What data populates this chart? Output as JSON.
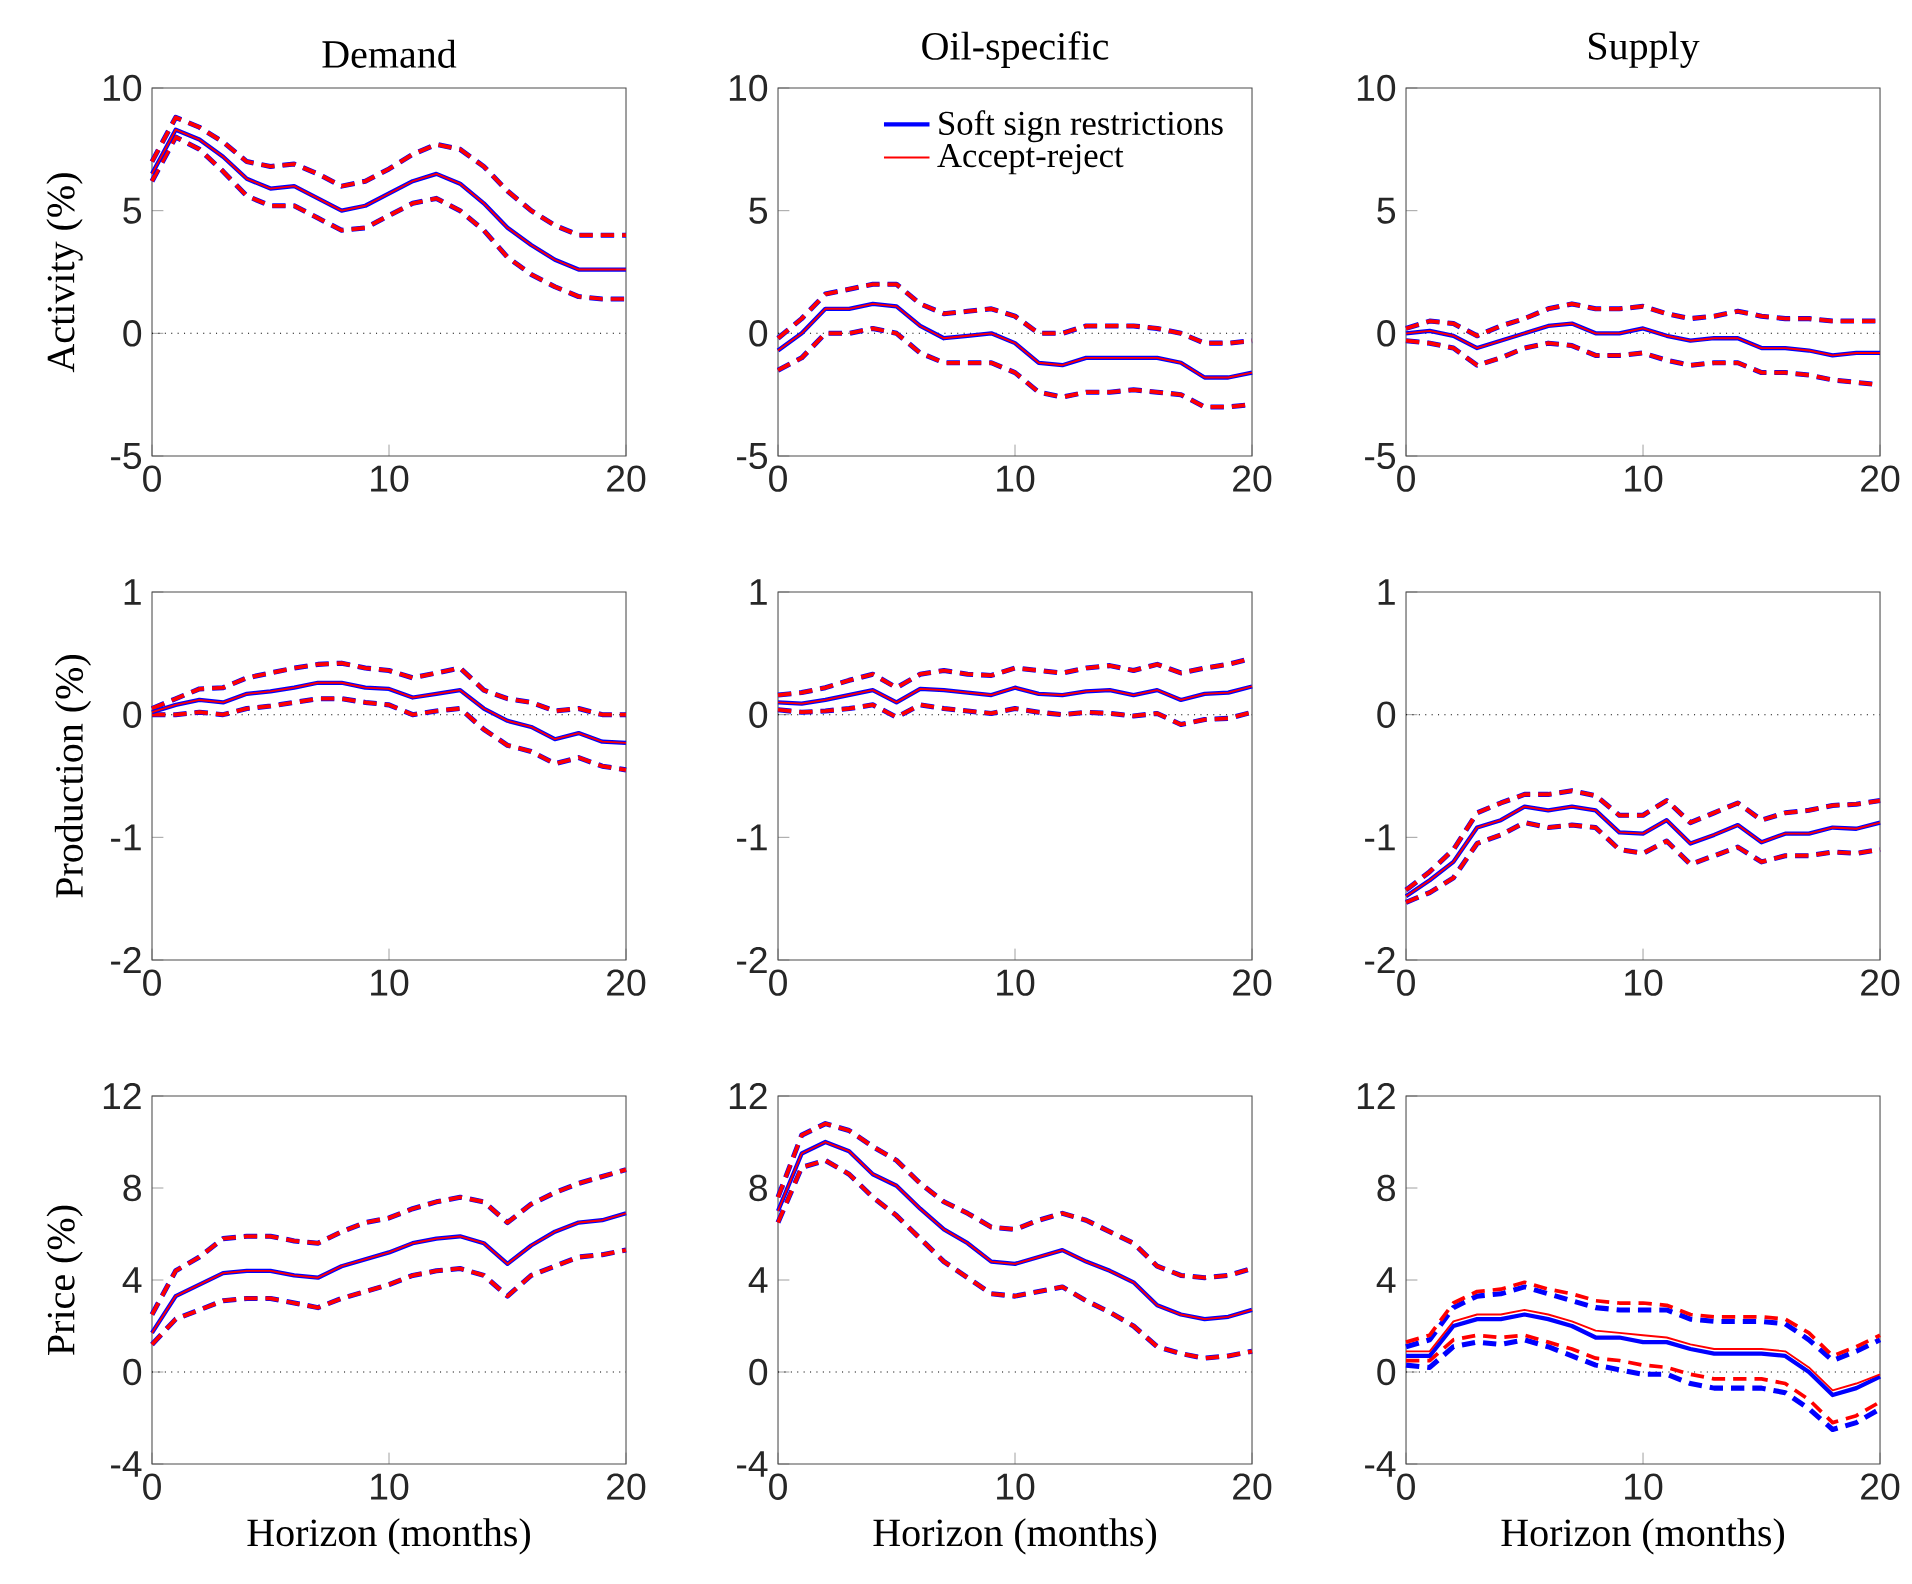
{
  "chart_data": [
    {
      "type": "line",
      "title": "Demand",
      "ylabel": "Activity (%)",
      "x": [
        0,
        1,
        2,
        3,
        4,
        5,
        6,
        7,
        8,
        9,
        10,
        11,
        12,
        13,
        14,
        15,
        16,
        17,
        18,
        19,
        20
      ],
      "xlim": [
        0,
        20
      ],
      "ylim": [
        -5,
        10
      ],
      "xticks": [
        0,
        10,
        20
      ],
      "yticks": [
        -5,
        0,
        5,
        10
      ],
      "ref_lines": [
        {
          "axis": "y",
          "value": 0,
          "line_style": "dotted"
        }
      ],
      "series": [
        {
          "color": "#0000ff",
          "line_style": "dashed",
          "values": [
            6.2,
            8.0,
            7.5,
            6.6,
            5.6,
            5.2,
            5.2,
            4.7,
            4.2,
            4.3,
            4.8,
            5.3,
            5.5,
            5.0,
            4.2,
            3.1,
            2.4,
            1.9,
            1.5,
            1.4,
            1.4
          ]
        },
        {
          "color": "#0000ff",
          "line_style": "dashed",
          "values": [
            7.0,
            8.8,
            8.4,
            7.8,
            7.0,
            6.8,
            6.9,
            6.5,
            6.0,
            6.2,
            6.7,
            7.3,
            7.7,
            7.5,
            6.8,
            5.8,
            5.0,
            4.4,
            4.0,
            4.0,
            4.0
          ]
        },
        {
          "color": "#ff0000",
          "line_style": "dashed",
          "values": [
            6.2,
            8.0,
            7.5,
            6.6,
            5.6,
            5.2,
            5.2,
            4.7,
            4.2,
            4.3,
            4.8,
            5.3,
            5.5,
            5.0,
            4.2,
            3.1,
            2.4,
            1.9,
            1.5,
            1.4,
            1.4
          ]
        },
        {
          "color": "#ff0000",
          "line_style": "dashed",
          "values": [
            7.0,
            8.8,
            8.4,
            7.8,
            7.0,
            6.8,
            6.9,
            6.5,
            6.0,
            6.2,
            6.7,
            7.3,
            7.7,
            7.5,
            6.8,
            5.8,
            5.0,
            4.4,
            4.0,
            4.0,
            4.0
          ]
        },
        {
          "color": "#0000ff",
          "line_style": "solid",
          "values": [
            6.5,
            8.3,
            7.9,
            7.2,
            6.3,
            5.9,
            6.0,
            5.5,
            5.0,
            5.2,
            5.7,
            6.2,
            6.5,
            6.1,
            5.3,
            4.3,
            3.6,
            3.0,
            2.6,
            2.6,
            2.6
          ]
        },
        {
          "color": "#ff0000",
          "line_style": "solid",
          "values": [
            6.5,
            8.3,
            7.9,
            7.2,
            6.3,
            5.9,
            6.0,
            5.5,
            5.0,
            5.2,
            5.7,
            6.2,
            6.5,
            6.1,
            5.3,
            4.3,
            3.6,
            3.0,
            2.6,
            2.6,
            2.6
          ]
        }
      ]
    },
    {
      "type": "line",
      "title": "Oil-specific",
      "legend": "top right",
      "x": [
        0,
        1,
        2,
        3,
        4,
        5,
        6,
        7,
        8,
        9,
        10,
        11,
        12,
        13,
        14,
        15,
        16,
        17,
        18,
        19,
        20
      ],
      "xlim": [
        0,
        20
      ],
      "ylim": [
        -5,
        10
      ],
      "xticks": [
        0,
        10,
        20
      ],
      "yticks": [
        -5,
        0,
        5,
        10
      ],
      "ref_lines": [
        {
          "axis": "y",
          "value": 0,
          "line_style": "dotted"
        }
      ],
      "series": [
        {
          "color": "#0000ff",
          "line_style": "dashed",
          "values": [
            -1.5,
            -1.0,
            0,
            0,
            0.2,
            0,
            -0.8,
            -1.2,
            -1.2,
            -1.2,
            -1.6,
            -2.4,
            -2.6,
            -2.4,
            -2.4,
            -2.3,
            -2.4,
            -2.5,
            -3.0,
            -3.0,
            -2.9
          ]
        },
        {
          "color": "#0000ff",
          "line_style": "dashed",
          "values": [
            -0.2,
            0.6,
            1.6,
            1.8,
            2.0,
            2.0,
            1.2,
            0.8,
            0.9,
            1.0,
            0.7,
            0,
            0,
            0.3,
            0.3,
            0.3,
            0.2,
            0,
            -0.4,
            -0.4,
            -0.3
          ]
        },
        {
          "color": "#ff0000",
          "line_style": "dashed",
          "values": [
            -1.5,
            -1.0,
            0,
            0,
            0.2,
            0,
            -0.8,
            -1.2,
            -1.2,
            -1.2,
            -1.6,
            -2.4,
            -2.6,
            -2.4,
            -2.4,
            -2.3,
            -2.4,
            -2.5,
            -3.0,
            -3.0,
            -2.9
          ]
        },
        {
          "color": "#ff0000",
          "line_style": "dashed",
          "values": [
            -0.2,
            0.6,
            1.6,
            1.8,
            2.0,
            2.0,
            1.2,
            0.8,
            0.9,
            1.0,
            0.7,
            0,
            0,
            0.3,
            0.3,
            0.3,
            0.2,
            0,
            -0.4,
            -0.4,
            -0.3
          ]
        },
        {
          "name": "Soft sign restrictions",
          "color": "#0000ff",
          "line_style": "solid",
          "values": [
            -0.7,
            0,
            1.0,
            1.0,
            1.2,
            1.1,
            0.3,
            -0.2,
            -0.1,
            0,
            -0.4,
            -1.2,
            -1.3,
            -1.0,
            -1.0,
            -1.0,
            -1.0,
            -1.2,
            -1.8,
            -1.8,
            -1.6
          ]
        },
        {
          "name": "Accept-reject",
          "color": "#ff0000",
          "line_style": "solid",
          "values": [
            -0.7,
            0,
            1.0,
            1.0,
            1.2,
            1.1,
            0.3,
            -0.2,
            -0.1,
            0,
            -0.4,
            -1.2,
            -1.3,
            -1.0,
            -1.0,
            -1.0,
            -1.0,
            -1.2,
            -1.8,
            -1.8,
            -1.6
          ]
        }
      ]
    },
    {
      "type": "line",
      "title": "Supply",
      "x": [
        0,
        1,
        2,
        3,
        4,
        5,
        6,
        7,
        8,
        9,
        10,
        11,
        12,
        13,
        14,
        15,
        16,
        17,
        18,
        19,
        20
      ],
      "xlim": [
        0,
        20
      ],
      "ylim": [
        -5,
        10
      ],
      "xticks": [
        0,
        10,
        20
      ],
      "yticks": [
        -5,
        0,
        5,
        10
      ],
      "ref_lines": [
        {
          "axis": "y",
          "value": 0,
          "line_style": "dotted"
        }
      ],
      "series": [
        {
          "color": "#0000ff",
          "line_style": "dashed",
          "values": [
            -0.3,
            -0.4,
            -0.6,
            -1.3,
            -1.0,
            -0.6,
            -0.4,
            -0.5,
            -0.9,
            -0.9,
            -0.8,
            -1.1,
            -1.3,
            -1.2,
            -1.2,
            -1.6,
            -1.6,
            -1.7,
            -1.9,
            -2.0,
            -2.1
          ]
        },
        {
          "color": "#0000ff",
          "line_style": "dashed",
          "values": [
            0.2,
            0.5,
            0.4,
            -0.1,
            0.3,
            0.6,
            1.0,
            1.2,
            1.0,
            1.0,
            1.1,
            0.8,
            0.6,
            0.7,
            0.9,
            0.7,
            0.6,
            0.6,
            0.5,
            0.5,
            0.5
          ]
        },
        {
          "color": "#ff0000",
          "line_style": "dashed",
          "values": [
            -0.3,
            -0.4,
            -0.6,
            -1.3,
            -1.0,
            -0.6,
            -0.4,
            -0.5,
            -0.9,
            -0.9,
            -0.8,
            -1.1,
            -1.3,
            -1.2,
            -1.2,
            -1.6,
            -1.6,
            -1.7,
            -1.9,
            -2.0,
            -2.1
          ]
        },
        {
          "color": "#ff0000",
          "line_style": "dashed",
          "values": [
            0.2,
            0.5,
            0.4,
            -0.1,
            0.3,
            0.6,
            1.0,
            1.2,
            1.0,
            1.0,
            1.1,
            0.8,
            0.6,
            0.7,
            0.9,
            0.7,
            0.6,
            0.6,
            0.5,
            0.5,
            0.5
          ]
        },
        {
          "color": "#0000ff",
          "line_style": "solid",
          "values": [
            0,
            0.1,
            -0.1,
            -0.6,
            -0.3,
            0,
            0.3,
            0.4,
            0,
            0,
            0.2,
            -0.1,
            -0.3,
            -0.2,
            -0.2,
            -0.6,
            -0.6,
            -0.7,
            -0.9,
            -0.8,
            -0.8
          ]
        },
        {
          "color": "#ff0000",
          "line_style": "solid",
          "values": [
            0,
            0.1,
            -0.1,
            -0.6,
            -0.3,
            0,
            0.3,
            0.4,
            0,
            0,
            0.2,
            -0.1,
            -0.3,
            -0.2,
            -0.2,
            -0.6,
            -0.6,
            -0.7,
            -0.9,
            -0.8,
            -0.8
          ]
        }
      ]
    },
    {
      "type": "line",
      "ylabel": "Production (%)",
      "x": [
        0,
        1,
        2,
        3,
        4,
        5,
        6,
        7,
        8,
        9,
        10,
        11,
        12,
        13,
        14,
        15,
        16,
        17,
        18,
        19,
        20
      ],
      "xlim": [
        0,
        20
      ],
      "ylim": [
        -2,
        1
      ],
      "xticks": [
        0,
        10,
        20
      ],
      "yticks": [
        -2,
        -1,
        0,
        1
      ],
      "ref_lines": [
        {
          "axis": "y",
          "value": 0,
          "line_style": "dotted"
        }
      ],
      "series": [
        {
          "color": "#0000ff",
          "line_style": "dashed",
          "values": [
            0,
            0,
            0.02,
            0,
            0.05,
            0.07,
            0.1,
            0.13,
            0.13,
            0.1,
            0.08,
            0,
            0.03,
            0.05,
            -0.12,
            -0.25,
            -0.3,
            -0.4,
            -0.35,
            -0.42,
            -0.45
          ]
        },
        {
          "color": "#0000ff",
          "line_style": "dashed",
          "values": [
            0.05,
            0.13,
            0.21,
            0.22,
            0.3,
            0.34,
            0.38,
            0.41,
            0.42,
            0.38,
            0.36,
            0.3,
            0.34,
            0.38,
            0.2,
            0.13,
            0.1,
            0.03,
            0.05,
            0,
            0
          ]
        },
        {
          "color": "#ff0000",
          "line_style": "dashed",
          "values": [
            0,
            0,
            0.02,
            0,
            0.05,
            0.07,
            0.1,
            0.13,
            0.13,
            0.1,
            0.08,
            0,
            0.03,
            0.05,
            -0.12,
            -0.25,
            -0.3,
            -0.4,
            -0.35,
            -0.42,
            -0.45
          ]
        },
        {
          "color": "#ff0000",
          "line_style": "dashed",
          "values": [
            0.05,
            0.13,
            0.21,
            0.22,
            0.3,
            0.34,
            0.38,
            0.41,
            0.42,
            0.38,
            0.36,
            0.3,
            0.34,
            0.38,
            0.2,
            0.13,
            0.1,
            0.03,
            0.05,
            0,
            0
          ]
        },
        {
          "color": "#0000ff",
          "line_style": "solid",
          "values": [
            0.02,
            0.08,
            0.12,
            0.1,
            0.17,
            0.19,
            0.22,
            0.26,
            0.26,
            0.22,
            0.21,
            0.14,
            0.17,
            0.2,
            0.05,
            -0.05,
            -0.1,
            -0.2,
            -0.15,
            -0.22,
            -0.23
          ]
        },
        {
          "color": "#ff0000",
          "line_style": "solid",
          "values": [
            0.02,
            0.08,
            0.12,
            0.1,
            0.17,
            0.19,
            0.22,
            0.26,
            0.26,
            0.22,
            0.21,
            0.14,
            0.17,
            0.2,
            0.05,
            -0.05,
            -0.1,
            -0.2,
            -0.15,
            -0.22,
            -0.23
          ]
        }
      ]
    },
    {
      "type": "line",
      "x": [
        0,
        1,
        2,
        3,
        4,
        5,
        6,
        7,
        8,
        9,
        10,
        11,
        12,
        13,
        14,
        15,
        16,
        17,
        18,
        19,
        20
      ],
      "xlim": [
        0,
        20
      ],
      "ylim": [
        -2,
        1
      ],
      "xticks": [
        0,
        10,
        20
      ],
      "yticks": [
        -2,
        -1,
        0,
        1
      ],
      "ref_lines": [
        {
          "axis": "y",
          "value": 0,
          "line_style": "dotted"
        }
      ],
      "series": [
        {
          "color": "#0000ff",
          "line_style": "dashed",
          "values": [
            0.04,
            0.02,
            0.03,
            0.05,
            0.08,
            -0.02,
            0.08,
            0.05,
            0.03,
            0.01,
            0.05,
            0.02,
            0,
            0.02,
            0.01,
            -0.01,
            0.01,
            -0.08,
            -0.04,
            -0.03,
            0.02
          ]
        },
        {
          "color": "#0000ff",
          "line_style": "dashed",
          "values": [
            0.16,
            0.18,
            0.22,
            0.28,
            0.33,
            0.22,
            0.33,
            0.36,
            0.33,
            0.32,
            0.38,
            0.36,
            0.34,
            0.38,
            0.4,
            0.36,
            0.41,
            0.34,
            0.38,
            0.41,
            0.46
          ]
        },
        {
          "color": "#ff0000",
          "line_style": "dashed",
          "values": [
            0.04,
            0.02,
            0.03,
            0.05,
            0.08,
            -0.02,
            0.08,
            0.05,
            0.03,
            0.01,
            0.05,
            0.02,
            0,
            0.02,
            0.01,
            -0.01,
            0.01,
            -0.08,
            -0.04,
            -0.03,
            0.02
          ]
        },
        {
          "color": "#ff0000",
          "line_style": "dashed",
          "values": [
            0.16,
            0.18,
            0.22,
            0.28,
            0.33,
            0.22,
            0.33,
            0.36,
            0.33,
            0.32,
            0.38,
            0.36,
            0.34,
            0.38,
            0.4,
            0.36,
            0.41,
            0.34,
            0.38,
            0.41,
            0.46
          ]
        },
        {
          "color": "#0000ff",
          "line_style": "solid",
          "values": [
            0.1,
            0.09,
            0.12,
            0.16,
            0.2,
            0.1,
            0.21,
            0.2,
            0.18,
            0.16,
            0.22,
            0.17,
            0.16,
            0.19,
            0.2,
            0.16,
            0.2,
            0.12,
            0.17,
            0.18,
            0.23
          ]
        },
        {
          "color": "#ff0000",
          "line_style": "solid",
          "values": [
            0.1,
            0.09,
            0.12,
            0.16,
            0.2,
            0.1,
            0.21,
            0.2,
            0.18,
            0.16,
            0.22,
            0.17,
            0.16,
            0.19,
            0.2,
            0.16,
            0.2,
            0.12,
            0.17,
            0.18,
            0.23
          ]
        }
      ]
    },
    {
      "type": "line",
      "x": [
        0,
        1,
        2,
        3,
        4,
        5,
        6,
        7,
        8,
        9,
        10,
        11,
        12,
        13,
        14,
        15,
        16,
        17,
        18,
        19,
        20
      ],
      "xlim": [
        0,
        20
      ],
      "ylim": [
        -2,
        1
      ],
      "xticks": [
        0,
        10,
        20
      ],
      "yticks": [
        -2,
        -1,
        0,
        1
      ],
      "ref_lines": [
        {
          "axis": "y",
          "value": 0,
          "line_style": "dotted"
        }
      ],
      "series": [
        {
          "color": "#0000ff",
          "line_style": "dashed",
          "values": [
            -1.53,
            -1.45,
            -1.33,
            -1.05,
            -0.98,
            -0.88,
            -0.92,
            -0.9,
            -0.92,
            -1.1,
            -1.13,
            -1.03,
            -1.22,
            -1.15,
            -1.08,
            -1.2,
            -1.15,
            -1.15,
            -1.12,
            -1.13,
            -1.1
          ]
        },
        {
          "color": "#0000ff",
          "line_style": "dashed",
          "values": [
            -1.43,
            -1.28,
            -1.1,
            -0.8,
            -0.72,
            -0.65,
            -0.65,
            -0.62,
            -0.66,
            -0.82,
            -0.82,
            -0.7,
            -0.88,
            -0.8,
            -0.72,
            -0.86,
            -0.8,
            -0.78,
            -0.74,
            -0.73,
            -0.7
          ]
        },
        {
          "color": "#ff0000",
          "line_style": "dashed",
          "values": [
            -1.53,
            -1.45,
            -1.33,
            -1.05,
            -0.98,
            -0.88,
            -0.92,
            -0.9,
            -0.92,
            -1.1,
            -1.13,
            -1.03,
            -1.22,
            -1.15,
            -1.08,
            -1.2,
            -1.15,
            -1.15,
            -1.12,
            -1.13,
            -1.1
          ]
        },
        {
          "color": "#ff0000",
          "line_style": "dashed",
          "values": [
            -1.43,
            -1.28,
            -1.1,
            -0.8,
            -0.72,
            -0.65,
            -0.65,
            -0.62,
            -0.66,
            -0.82,
            -0.82,
            -0.7,
            -0.88,
            -0.8,
            -0.72,
            -0.86,
            -0.8,
            -0.78,
            -0.74,
            -0.73,
            -0.7
          ]
        },
        {
          "color": "#0000ff",
          "line_style": "solid",
          "values": [
            -1.48,
            -1.35,
            -1.2,
            -0.92,
            -0.86,
            -0.75,
            -0.78,
            -0.75,
            -0.78,
            -0.96,
            -0.97,
            -0.86,
            -1.05,
            -0.98,
            -0.9,
            -1.04,
            -0.97,
            -0.97,
            -0.92,
            -0.93,
            -0.88
          ]
        },
        {
          "color": "#ff0000",
          "line_style": "solid",
          "values": [
            -1.48,
            -1.35,
            -1.2,
            -0.92,
            -0.86,
            -0.75,
            -0.78,
            -0.75,
            -0.78,
            -0.96,
            -0.97,
            -0.86,
            -1.05,
            -0.98,
            -0.9,
            -1.04,
            -0.97,
            -0.97,
            -0.92,
            -0.93,
            -0.88
          ]
        }
      ]
    },
    {
      "type": "line",
      "ylabel": "Price (%)",
      "xlabel": "Horizon (months)",
      "x": [
        0,
        1,
        2,
        3,
        4,
        5,
        6,
        7,
        8,
        9,
        10,
        11,
        12,
        13,
        14,
        15,
        16,
        17,
        18,
        19,
        20
      ],
      "xlim": [
        0,
        20
      ],
      "ylim": [
        -4,
        12
      ],
      "xticks": [
        0,
        10,
        20
      ],
      "yticks": [
        -4,
        0,
        4,
        8,
        12
      ],
      "ref_lines": [
        {
          "axis": "y",
          "value": 0,
          "line_style": "dotted"
        }
      ],
      "series": [
        {
          "color": "#0000ff",
          "line_style": "dashed",
          "values": [
            1.2,
            2.3,
            2.7,
            3.1,
            3.2,
            3.2,
            3.0,
            2.8,
            3.2,
            3.5,
            3.8,
            4.2,
            4.4,
            4.5,
            4.2,
            3.3,
            4.2,
            4.6,
            5.0,
            5.1,
            5.3
          ]
        },
        {
          "color": "#0000ff",
          "line_style": "dashed",
          "values": [
            2.5,
            4.4,
            5.0,
            5.8,
            5.9,
            5.9,
            5.7,
            5.6,
            6.1,
            6.5,
            6.7,
            7.1,
            7.4,
            7.6,
            7.4,
            6.5,
            7.3,
            7.8,
            8.2,
            8.5,
            8.8
          ]
        },
        {
          "color": "#ff0000",
          "line_style": "dashed",
          "values": [
            1.2,
            2.3,
            2.7,
            3.1,
            3.2,
            3.2,
            3.0,
            2.8,
            3.2,
            3.5,
            3.8,
            4.2,
            4.4,
            4.5,
            4.2,
            3.3,
            4.2,
            4.6,
            5.0,
            5.1,
            5.3
          ]
        },
        {
          "color": "#ff0000",
          "line_style": "dashed",
          "values": [
            2.5,
            4.4,
            5.0,
            5.8,
            5.9,
            5.9,
            5.7,
            5.6,
            6.1,
            6.5,
            6.7,
            7.1,
            7.4,
            7.6,
            7.4,
            6.5,
            7.3,
            7.8,
            8.2,
            8.5,
            8.8
          ]
        },
        {
          "color": "#0000ff",
          "line_style": "solid",
          "values": [
            1.7,
            3.3,
            3.8,
            4.3,
            4.4,
            4.4,
            4.2,
            4.1,
            4.6,
            4.9,
            5.2,
            5.6,
            5.8,
            5.9,
            5.6,
            4.7,
            5.5,
            6.1,
            6.5,
            6.6,
            6.9
          ]
        },
        {
          "color": "#ff0000",
          "line_style": "solid",
          "values": [
            1.7,
            3.3,
            3.8,
            4.3,
            4.4,
            4.4,
            4.2,
            4.1,
            4.6,
            4.9,
            5.2,
            5.6,
            5.8,
            5.9,
            5.6,
            4.7,
            5.5,
            6.1,
            6.5,
            6.6,
            6.9
          ]
        }
      ]
    },
    {
      "type": "line",
      "xlabel": "Horizon (months)",
      "x": [
        0,
        1,
        2,
        3,
        4,
        5,
        6,
        7,
        8,
        9,
        10,
        11,
        12,
        13,
        14,
        15,
        16,
        17,
        18,
        19,
        20
      ],
      "xlim": [
        0,
        20
      ],
      "ylim": [
        -4,
        12
      ],
      "xticks": [
        0,
        10,
        20
      ],
      "yticks": [
        -4,
        0,
        4,
        8,
        12
      ],
      "ref_lines": [
        {
          "axis": "y",
          "value": 0,
          "line_style": "dotted"
        }
      ],
      "series": [
        {
          "color": "#0000ff",
          "line_style": "dashed",
          "values": [
            6.5,
            8.9,
            9.2,
            8.6,
            7.6,
            6.8,
            5.8,
            4.8,
            4.1,
            3.4,
            3.3,
            3.5,
            3.7,
            3.1,
            2.6,
            2.0,
            1.1,
            0.8,
            0.6,
            0.7,
            0.9
          ]
        },
        {
          "color": "#0000ff",
          "line_style": "dashed",
          "values": [
            7.6,
            10.3,
            10.8,
            10.5,
            9.8,
            9.2,
            8.2,
            7.4,
            6.9,
            6.3,
            6.2,
            6.6,
            6.9,
            6.6,
            6.1,
            5.6,
            4.6,
            4.2,
            4.1,
            4.2,
            4.5
          ]
        },
        {
          "color": "#ff0000",
          "line_style": "dashed",
          "values": [
            6.5,
            8.9,
            9.2,
            8.6,
            7.6,
            6.8,
            5.8,
            4.8,
            4.1,
            3.4,
            3.3,
            3.5,
            3.7,
            3.1,
            2.6,
            2.0,
            1.1,
            0.8,
            0.6,
            0.7,
            0.9
          ]
        },
        {
          "color": "#ff0000",
          "line_style": "dashed",
          "values": [
            7.6,
            10.3,
            10.8,
            10.5,
            9.8,
            9.2,
            8.2,
            7.4,
            6.9,
            6.3,
            6.2,
            6.6,
            6.9,
            6.6,
            6.1,
            5.6,
            4.6,
            4.2,
            4.1,
            4.2,
            4.5
          ]
        },
        {
          "color": "#0000ff",
          "line_style": "solid",
          "values": [
            7.0,
            9.5,
            10.0,
            9.6,
            8.6,
            8.1,
            7.1,
            6.2,
            5.6,
            4.8,
            4.7,
            5.0,
            5.3,
            4.8,
            4.4,
            3.9,
            2.9,
            2.5,
            2.3,
            2.4,
            2.7
          ]
        },
        {
          "color": "#ff0000",
          "line_style": "solid",
          "values": [
            7.0,
            9.5,
            10.0,
            9.6,
            8.6,
            8.1,
            7.1,
            6.2,
            5.6,
            4.8,
            4.7,
            5.0,
            5.3,
            4.8,
            4.4,
            3.9,
            2.9,
            2.5,
            2.3,
            2.4,
            2.7
          ]
        }
      ]
    },
    {
      "type": "line",
      "xlabel": "Horizon (months)",
      "x": [
        0,
        1,
        2,
        3,
        4,
        5,
        6,
        7,
        8,
        9,
        10,
        11,
        12,
        13,
        14,
        15,
        16,
        17,
        18,
        19,
        20
      ],
      "xlim": [
        0,
        20
      ],
      "ylim": [
        -4,
        12
      ],
      "xticks": [
        0,
        10,
        20
      ],
      "yticks": [
        -4,
        0,
        4,
        8,
        12
      ],
      "ref_lines": [
        {
          "axis": "y",
          "value": 0,
          "line_style": "dotted"
        }
      ],
      "series": [
        {
          "color": "#0000ff",
          "line_style": "dashed",
          "values": [
            0.3,
            0.2,
            1.1,
            1.3,
            1.2,
            1.4,
            1.1,
            0.7,
            0.3,
            0.1,
            -0.1,
            -0.1,
            -0.5,
            -0.7,
            -0.7,
            -0.7,
            -0.9,
            -1.6,
            -2.5,
            -2.2,
            -1.6
          ]
        },
        {
          "color": "#0000ff",
          "line_style": "dashed",
          "values": [
            1.1,
            1.4,
            2.8,
            3.3,
            3.4,
            3.7,
            3.4,
            3.1,
            2.8,
            2.7,
            2.7,
            2.7,
            2.3,
            2.2,
            2.2,
            2.2,
            2.1,
            1.4,
            0.5,
            0.9,
            1.4
          ]
        },
        {
          "color": "#ff0000",
          "line_style": "dashed",
          "values": [
            0.5,
            0.5,
            1.4,
            1.6,
            1.5,
            1.6,
            1.3,
            1.0,
            0.6,
            0.5,
            0.3,
            0.2,
            -0.1,
            -0.3,
            -0.3,
            -0.3,
            -0.5,
            -1.2,
            -2.2,
            -1.9,
            -1.3
          ]
        },
        {
          "color": "#ff0000",
          "line_style": "dashed",
          "values": [
            1.3,
            1.6,
            3.0,
            3.5,
            3.6,
            3.9,
            3.6,
            3.4,
            3.1,
            3.0,
            3.0,
            2.9,
            2.5,
            2.4,
            2.4,
            2.4,
            2.3,
            1.7,
            0.7,
            1.1,
            1.6
          ]
        },
        {
          "color": "#0000ff",
          "line_style": "solid",
          "values": [
            0.7,
            0.7,
            2.0,
            2.3,
            2.3,
            2.5,
            2.3,
            2.0,
            1.5,
            1.5,
            1.3,
            1.3,
            1.0,
            0.8,
            0.8,
            0.8,
            0.7,
            0,
            -1.0,
            -0.7,
            -0.2
          ]
        },
        {
          "color": "#ff0000",
          "line_style": "solid",
          "values": [
            0.9,
            0.9,
            2.2,
            2.5,
            2.5,
            2.7,
            2.5,
            2.2,
            1.8,
            1.7,
            1.6,
            1.5,
            1.2,
            1.0,
            1.0,
            1.0,
            0.9,
            0.2,
            -0.8,
            -0.5,
            -0.1
          ]
        }
      ]
    }
  ]
}
